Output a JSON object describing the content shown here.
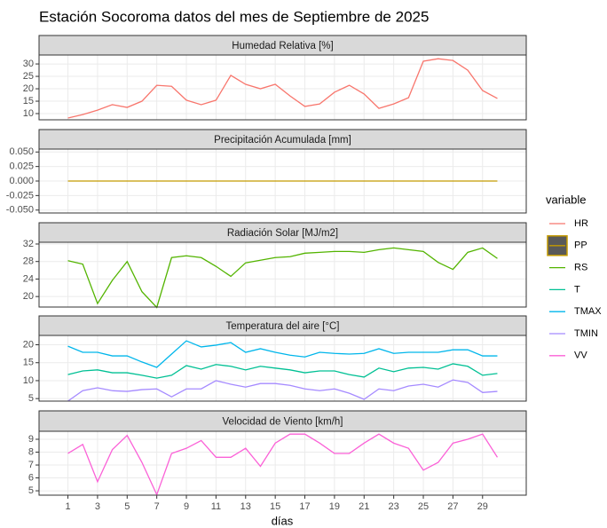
{
  "title": "Estación Socoroma datos del mes de Septiembre de 2025",
  "xlabel": "días",
  "legend_title": "variable",
  "chart_data": [
    {
      "type": "line",
      "title": "Humedad Relativa [%]",
      "x": [
        1,
        2,
        3,
        4,
        5,
        6,
        7,
        8,
        9,
        10,
        11,
        12,
        13,
        14,
        15,
        16,
        17,
        18,
        19,
        20,
        21,
        22,
        23,
        24,
        25,
        26,
        27,
        28,
        29,
        30
      ],
      "series": [
        {
          "name": "HR",
          "color": "#F8766D",
          "values": [
            8.2,
            9.6,
            11.4,
            13.6,
            12.5,
            15,
            21.4,
            21,
            15.4,
            13.6,
            15.4,
            25.4,
            21.8,
            20,
            21.8,
            17.1,
            12.9,
            13.9,
            18.6,
            21.4,
            17.9,
            12.1,
            13.9,
            16.4,
            31.1,
            32.1,
            31.4,
            27.5,
            19.3,
            16.1
          ]
        }
      ],
      "xlim": [
        -0.95,
        31.95
      ],
      "xticks": [
        1,
        3,
        5,
        7,
        9,
        11,
        13,
        15,
        17,
        19,
        21,
        23,
        25,
        27,
        29
      ],
      "ylim": [
        7.5,
        33.6
      ],
      "yticks": [
        10,
        15,
        20,
        25,
        30
      ],
      "grid": true
    },
    {
      "type": "line",
      "title": "Precipitación Acumulada [mm]",
      "x": [
        1,
        2,
        3,
        4,
        5,
        6,
        7,
        8,
        9,
        10,
        11,
        12,
        13,
        14,
        15,
        16,
        17,
        18,
        19,
        20,
        21,
        22,
        23,
        24,
        25,
        26,
        27,
        28,
        29,
        30
      ],
      "series": [
        {
          "name": "PP",
          "color": "#C49A00",
          "values": [
            0,
            0,
            0,
            0,
            0,
            0,
            0,
            0,
            0,
            0,
            0,
            0,
            0,
            0,
            0,
            0,
            0,
            0,
            0,
            0,
            0,
            0,
            0,
            0,
            0,
            0,
            0,
            0,
            0,
            0
          ]
        }
      ],
      "xlim": [
        -0.95,
        31.95
      ],
      "xticks": [
        1,
        3,
        5,
        7,
        9,
        11,
        13,
        15,
        17,
        19,
        21,
        23,
        25,
        27,
        29
      ],
      "ylim": [
        -0.055,
        0.055
      ],
      "yticks": [
        {
          "value": -0.05,
          "label": "-0.050"
        },
        {
          "value": -0.025,
          "label": "-0.025"
        },
        {
          "value": 0,
          "label": "0.000"
        },
        {
          "value": 0.025,
          "label": "0.025"
        },
        {
          "value": 0.05,
          "label": "0.050"
        }
      ],
      "grid": true
    },
    {
      "type": "line",
      "title": "Radiación Solar [MJ/m2]",
      "x": [
        1,
        2,
        3,
        4,
        5,
        6,
        7,
        8,
        9,
        10,
        11,
        12,
        13,
        14,
        15,
        16,
        17,
        18,
        19,
        20,
        21,
        22,
        23,
        24,
        25,
        26,
        27,
        28,
        29,
        30
      ],
      "series": [
        {
          "name": "RS",
          "color": "#53B400",
          "values": [
            28.2,
            27.4,
            18.4,
            23.7,
            28,
            21.1,
            17.5,
            28.9,
            29.3,
            28.9,
            26.9,
            24.6,
            27.7,
            28.3,
            28.9,
            29.1,
            29.9,
            30.1,
            30.3,
            30.3,
            30.1,
            30.7,
            31.1,
            30.7,
            30.3,
            27.8,
            26.2,
            30.1,
            31.1,
            28.7
          ]
        }
      ],
      "xlim": [
        -0.95,
        31.95
      ],
      "xticks": [
        1,
        3,
        5,
        7,
        9,
        11,
        13,
        15,
        17,
        19,
        21,
        23,
        25,
        27,
        29
      ],
      "ylim": [
        17.6,
        32.4
      ],
      "yticks": [
        20,
        24,
        28,
        32
      ],
      "grid": true
    },
    {
      "type": "line",
      "title": "Temperatura del aire [°C]",
      "x": [
        1,
        2,
        3,
        4,
        5,
        6,
        7,
        8,
        9,
        10,
        11,
        12,
        13,
        14,
        15,
        16,
        17,
        18,
        19,
        20,
        21,
        22,
        23,
        24,
        25,
        26,
        27,
        28,
        29,
        30
      ],
      "series": [
        {
          "name": "T",
          "color": "#00C094",
          "values": [
            11.7,
            12.7,
            13,
            12.2,
            12.2,
            11.5,
            10.7,
            11.5,
            14.2,
            13.2,
            14.5,
            14,
            13,
            14,
            13.5,
            13,
            12.2,
            12.7,
            12.7,
            11.7,
            11,
            13.5,
            12.5,
            13.5,
            13.7,
            13.2,
            14.7,
            14,
            11.5,
            12
          ]
        },
        {
          "name": "TMAX",
          "color": "#00B6EB",
          "values": [
            19.6,
            17.9,
            17.9,
            16.9,
            16.9,
            15.2,
            13.7,
            17.4,
            21.1,
            19.4,
            19.9,
            20.6,
            17.9,
            18.9,
            17.9,
            17.1,
            16.6,
            17.9,
            17.6,
            17.4,
            17.6,
            18.9,
            17.6,
            17.9,
            17.9,
            17.9,
            18.6,
            18.6,
            16.9,
            16.9
          ]
        },
        {
          "name": "TMIN",
          "color": "#A58AFF",
          "values": [
            4.3,
            7.2,
            8,
            7.2,
            7,
            7.5,
            7.7,
            5.5,
            7.7,
            7.7,
            10,
            9,
            8.2,
            9.2,
            9.2,
            8.7,
            7.7,
            7.2,
            7.7,
            6.5,
            4.8,
            7.7,
            7.2,
            8.5,
            9,
            8.2,
            10.2,
            9.5,
            6.7,
            7
          ]
        }
      ],
      "xlim": [
        -0.95,
        31.95
      ],
      "xticks": [
        1,
        3,
        5,
        7,
        9,
        11,
        13,
        15,
        17,
        19,
        21,
        23,
        25,
        27,
        29
      ],
      "ylim": [
        4.3,
        22.6
      ],
      "yticks": [
        5,
        10,
        15,
        20
      ],
      "grid": true
    },
    {
      "type": "line",
      "title": "Velocidad de Viento [km/h]",
      "x": [
        1,
        2,
        3,
        4,
        5,
        6,
        7,
        8,
        9,
        10,
        11,
        12,
        13,
        14,
        15,
        16,
        17,
        18,
        19,
        20,
        21,
        22,
        23,
        24,
        25,
        26,
        27,
        28,
        29,
        30
      ],
      "series": [
        {
          "name": "VV",
          "color": "#FB61D7",
          "values": [
            7.9,
            8.6,
            5.7,
            8.2,
            9.3,
            7.2,
            4.7,
            7.9,
            8.3,
            8.9,
            7.6,
            7.6,
            8.3,
            6.9,
            8.7,
            9.4,
            9.4,
            8.7,
            7.9,
            7.9,
            8.7,
            9.4,
            8.7,
            8.3,
            6.6,
            7.2,
            8.7,
            9,
            9.4,
            7.6
          ]
        }
      ],
      "xlim": [
        -0.95,
        31.95
      ],
      "xticks": [
        1,
        3,
        5,
        7,
        9,
        11,
        13,
        15,
        17,
        19,
        21,
        23,
        25,
        27,
        29
      ],
      "ylim": [
        4.66,
        9.62
      ],
      "yticks": [
        5,
        6,
        7,
        8,
        9
      ],
      "grid": true
    }
  ]
}
